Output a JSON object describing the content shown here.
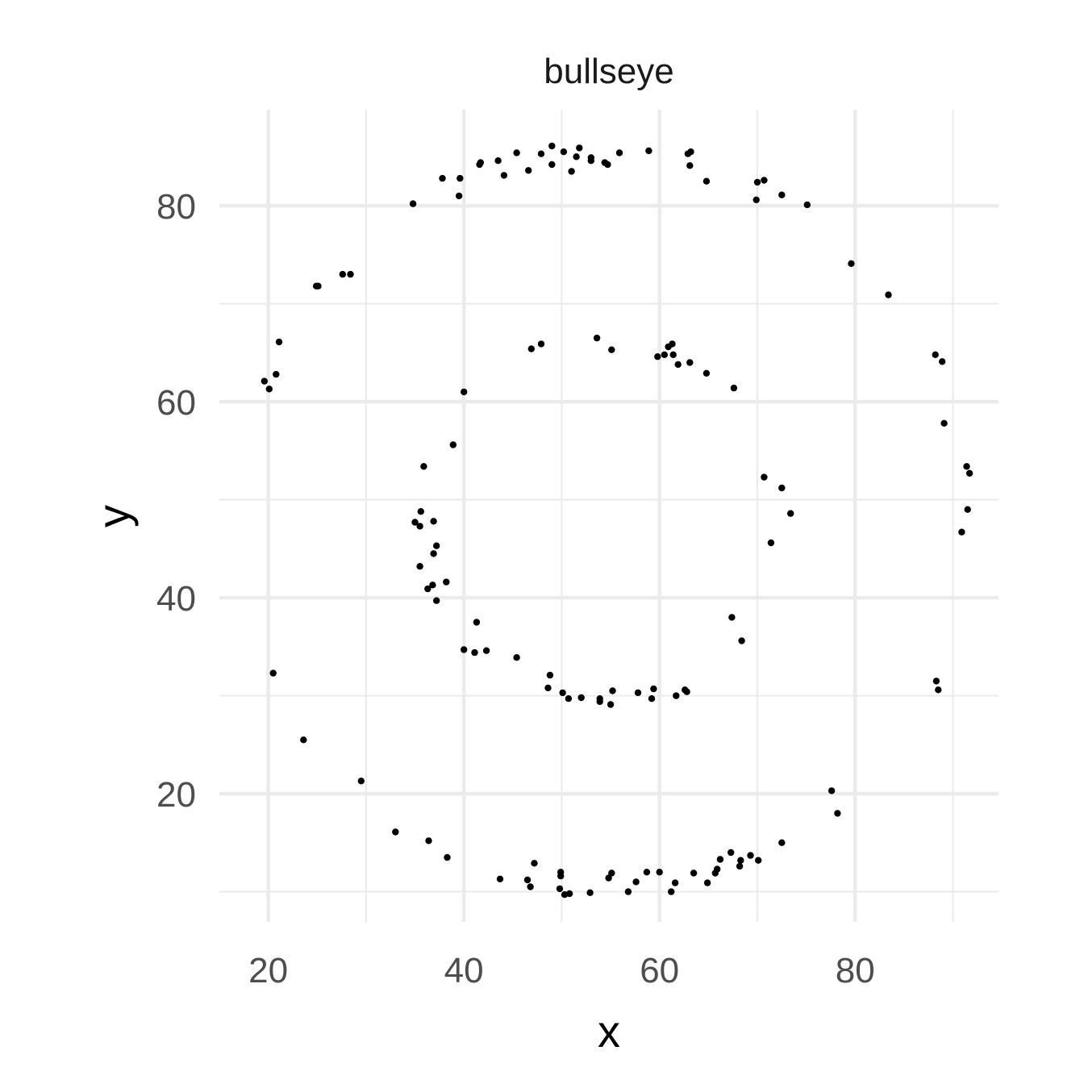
{
  "chart_data": {
    "type": "scatter",
    "title": "bullseye",
    "xlabel": "x",
    "ylabel": "y",
    "xlim": [
      15.0,
      94.66
    ],
    "ylim": [
      6.92,
      89.8
    ],
    "x_ticks": [
      20,
      40,
      60,
      80
    ],
    "y_ticks": [
      20,
      40,
      60,
      80
    ],
    "grid": true,
    "legend": "none",
    "points": [
      [
        34.8,
        80.2
      ],
      [
        39.6,
        82.8
      ],
      [
        37.8,
        82.8
      ],
      [
        39.5,
        81.0
      ],
      [
        41.6,
        84.2
      ],
      [
        41.7,
        84.4
      ],
      [
        43.5,
        84.6
      ],
      [
        44.1,
        83.1
      ],
      [
        45.4,
        85.4
      ],
      [
        46.6,
        83.6
      ],
      [
        47.9,
        85.3
      ],
      [
        49.0,
        86.1
      ],
      [
        49.0,
        84.2
      ],
      [
        50.2,
        85.5
      ],
      [
        51.0,
        83.5
      ],
      [
        51.5,
        85.0
      ],
      [
        51.8,
        85.9
      ],
      [
        53.0,
        84.9
      ],
      [
        53.0,
        84.6
      ],
      [
        54.4,
        84.4
      ],
      [
        54.7,
        84.2
      ],
      [
        55.9,
        85.4
      ],
      [
        58.9,
        85.6
      ],
      [
        62.9,
        85.3
      ],
      [
        63.2,
        85.5
      ],
      [
        63.1,
        84.1
      ],
      [
        64.8,
        82.5
      ],
      [
        70.0,
        82.4
      ],
      [
        70.7,
        82.6
      ],
      [
        69.9,
        80.6
      ],
      [
        72.5,
        81.1
      ],
      [
        75.1,
        80.1
      ],
      [
        79.6,
        74.1
      ],
      [
        83.4,
        70.9
      ],
      [
        88.2,
        64.8
      ],
      [
        88.9,
        64.1
      ],
      [
        89.1,
        57.8
      ],
      [
        91.4,
        53.4
      ],
      [
        91.7,
        52.7
      ],
      [
        91.5,
        49.0
      ],
      [
        90.9,
        46.7
      ],
      [
        88.3,
        31.5
      ],
      [
        88.5,
        30.6
      ],
      [
        77.6,
        20.3
      ],
      [
        78.2,
        18.0
      ],
      [
        72.5,
        15.0
      ],
      [
        69.3,
        13.7
      ],
      [
        68.2,
        12.6
      ],
      [
        68.3,
        13.2
      ],
      [
        67.3,
        14.0
      ],
      [
        70.1,
        13.2
      ],
      [
        65.9,
        12.3
      ],
      [
        66.2,
        13.3
      ],
      [
        65.7,
        11.9
      ],
      [
        64.9,
        10.9
      ],
      [
        63.5,
        11.9
      ],
      [
        61.6,
        10.9
      ],
      [
        61.2,
        10.0
      ],
      [
        60.0,
        12.0
      ],
      [
        58.7,
        12.0
      ],
      [
        57.6,
        11.0
      ],
      [
        56.8,
        10.0
      ],
      [
        55.1,
        11.9
      ],
      [
        54.8,
        11.4
      ],
      [
        52.9,
        9.9
      ],
      [
        50.8,
        9.8
      ],
      [
        50.3,
        9.7
      ],
      [
        49.8,
        10.3
      ],
      [
        49.9,
        12.0
      ],
      [
        49.9,
        11.6
      ],
      [
        47.2,
        12.9
      ],
      [
        46.8,
        10.5
      ],
      [
        46.5,
        11.2
      ],
      [
        43.7,
        11.3
      ],
      [
        38.3,
        13.5
      ],
      [
        36.4,
        15.2
      ],
      [
        33.0,
        16.1
      ],
      [
        29.5,
        21.3
      ],
      [
        23.6,
        25.5
      ],
      [
        20.5,
        32.3
      ],
      [
        19.6,
        62.1
      ],
      [
        20.1,
        61.3
      ],
      [
        20.8,
        62.8
      ],
      [
        21.1,
        66.1
      ],
      [
        25.1,
        71.8
      ],
      [
        24.9,
        71.8
      ],
      [
        27.6,
        73.0
      ],
      [
        28.4,
        73.0
      ],
      [
        40.0,
        61.0
      ],
      [
        38.9,
        55.6
      ],
      [
        35.9,
        53.4
      ],
      [
        35.6,
        48.8
      ],
      [
        35.0,
        47.7
      ],
      [
        35.5,
        47.3
      ],
      [
        36.9,
        47.8
      ],
      [
        37.2,
        45.3
      ],
      [
        36.9,
        44.5
      ],
      [
        35.5,
        43.2
      ],
      [
        36.3,
        40.9
      ],
      [
        36.8,
        41.3
      ],
      [
        38.2,
        41.6
      ],
      [
        37.2,
        39.7
      ],
      [
        41.3,
        37.5
      ],
      [
        40.0,
        34.7
      ],
      [
        41.1,
        34.4
      ],
      [
        42.3,
        34.6
      ],
      [
        45.4,
        33.9
      ],
      [
        48.8,
        32.1
      ],
      [
        48.6,
        30.8
      ],
      [
        50.1,
        30.3
      ],
      [
        50.7,
        29.7
      ],
      [
        52.0,
        29.8
      ],
      [
        53.9,
        29.4
      ],
      [
        53.9,
        29.7
      ],
      [
        55.0,
        29.1
      ],
      [
        55.2,
        30.5
      ],
      [
        57.8,
        30.3
      ],
      [
        59.2,
        29.7
      ],
      [
        59.4,
        30.7
      ],
      [
        61.7,
        30.0
      ],
      [
        62.6,
        30.6
      ],
      [
        62.8,
        30.4
      ],
      [
        67.4,
        38.0
      ],
      [
        68.4,
        35.6
      ],
      [
        71.4,
        45.6
      ],
      [
        70.7,
        52.3
      ],
      [
        72.5,
        51.2
      ],
      [
        73.4,
        48.6
      ],
      [
        67.6,
        61.4
      ],
      [
        64.8,
        62.9
      ],
      [
        63.1,
        64.0
      ],
      [
        61.9,
        63.8
      ],
      [
        61.4,
        64.8
      ],
      [
        60.9,
        65.6
      ],
      [
        61.3,
        65.9
      ],
      [
        60.5,
        64.8
      ],
      [
        59.8,
        64.6
      ],
      [
        55.1,
        65.3
      ],
      [
        53.6,
        66.5
      ],
      [
        47.9,
        65.9
      ],
      [
        46.9,
        65.4
      ]
    ]
  }
}
